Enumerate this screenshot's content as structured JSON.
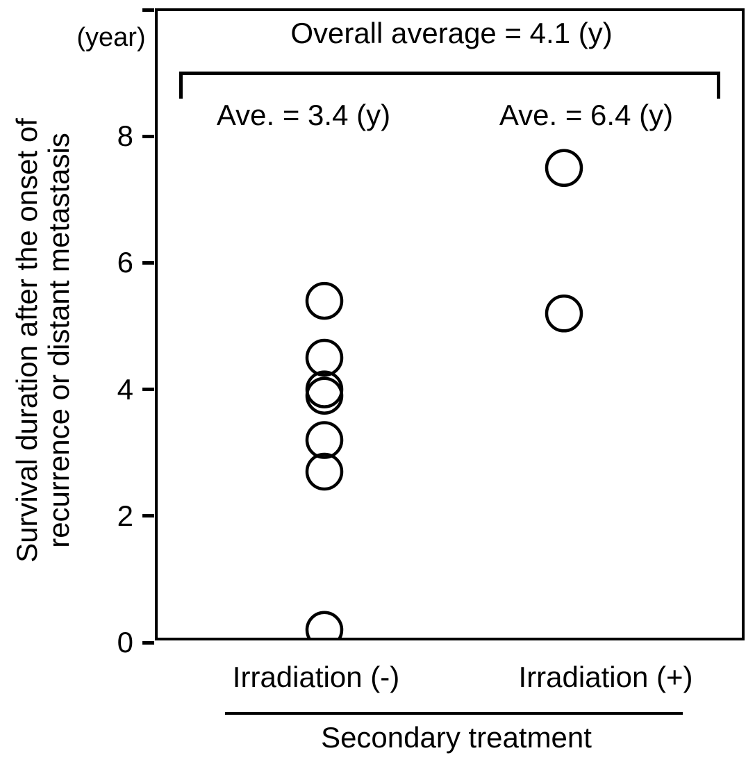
{
  "figure": {
    "title": "Overall average = 4.1 (y)",
    "y_axis": {
      "unit_label": "(year)",
      "axis_label_line1": "Survival duration after the onset of",
      "axis_label_line2": "recurrence or distant metastasis"
    },
    "group_averages": [
      "Ave. = 3.4 (y)",
      "Ave. = 6.4 (y)"
    ],
    "x_axis": {
      "group_labels": [
        "Irradiation (-)",
        "Irradiation (+)"
      ],
      "axis_title": "Secondary treatment"
    }
  },
  "chart_data": {
    "type": "scatter",
    "title": "Overall average = 4.1 (y)",
    "ylabel": "Survival duration after the onset of recurrence or distant metastasis",
    "y_unit": "(year)",
    "xlabel": "Secondary treatment",
    "ylim": [
      0,
      10
    ],
    "yticks": [
      {
        "value": 0,
        "label": "0"
      },
      {
        "value": 2,
        "label": "2"
      },
      {
        "value": 4,
        "label": "4"
      },
      {
        "value": 6,
        "label": "6"
      },
      {
        "value": 8,
        "label": "8"
      },
      {
        "value": 10,
        "label": ""
      }
    ],
    "categories": [
      "Irradiation (-)",
      "Irradiation (+)"
    ],
    "series": [
      {
        "name": "Irradiation (-)",
        "values": [
          5.4,
          4.5,
          4.0,
          3.9,
          3.2,
          2.7,
          0.2
        ],
        "average": 3.4
      },
      {
        "name": "Irradiation (+)",
        "values": [
          7.5,
          5.2
        ],
        "average": 6.4
      }
    ],
    "overall_average": 4.1,
    "annotations": [
      "Overall average = 4.1 (y)",
      "Ave. = 3.4 (y)",
      "Ave. = 6.4 (y)"
    ],
    "marker": "open-circle",
    "marker_color": "#000000",
    "grid": false,
    "legend": false
  }
}
